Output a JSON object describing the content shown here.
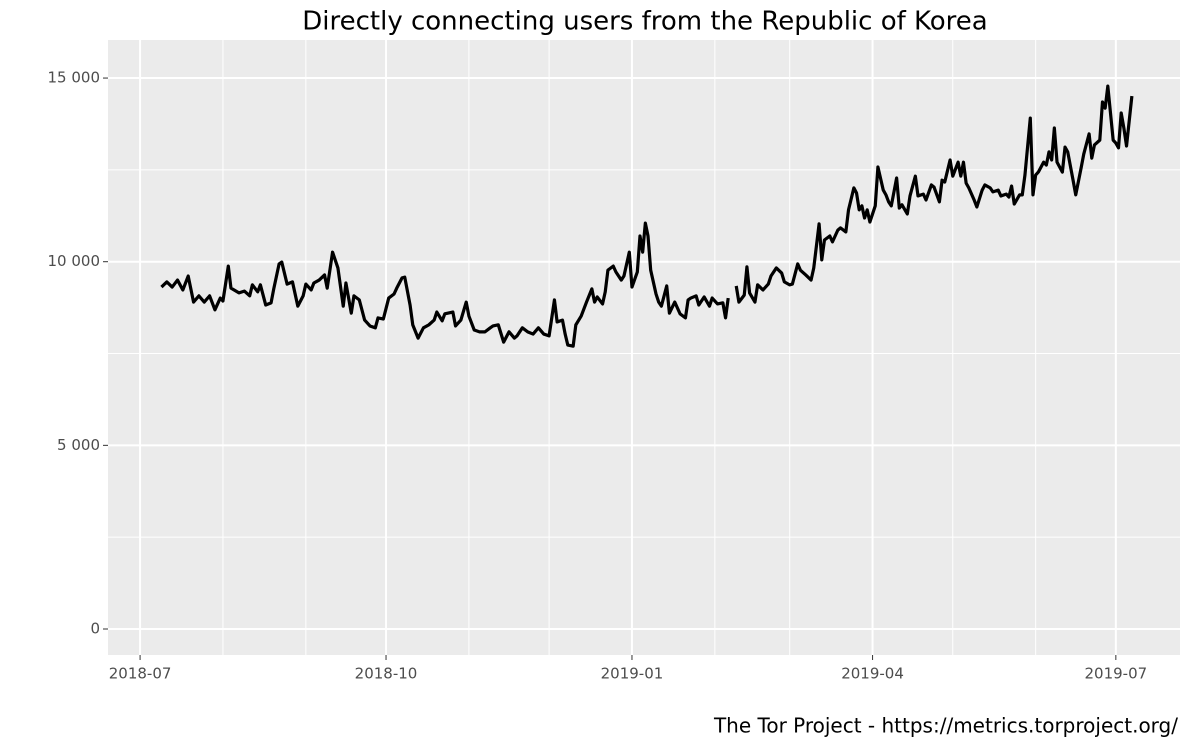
{
  "chart_data": {
    "type": "line",
    "title": "Directly connecting users from the Republic of Korea",
    "caption": "The Tor Project - https://metrics.torproject.org/",
    "x": [
      "2018-07-09",
      "2018-07-11",
      "2018-07-13",
      "2018-07-15",
      "2018-07-17",
      "2018-07-19",
      "2018-07-21",
      "2018-07-23",
      "2018-07-25",
      "2018-07-27",
      "2018-07-29",
      "2018-07-31",
      "2018-08-01",
      "2018-08-03",
      "2018-08-04",
      "2018-08-07",
      "2018-08-09",
      "2018-08-11",
      "2018-08-12",
      "2018-08-14",
      "2018-08-15",
      "2018-08-17",
      "2018-08-19",
      "2018-08-20",
      "2018-08-22",
      "2018-08-23",
      "2018-08-25",
      "2018-08-27",
      "2018-08-29",
      "2018-08-31",
      "2018-09-01",
      "2018-09-03",
      "2018-09-04",
      "2018-09-06",
      "2018-09-08",
      "2018-09-09",
      "2018-09-11",
      "2018-09-13",
      "2018-09-15",
      "2018-09-16",
      "2018-09-18",
      "2018-09-19",
      "2018-09-21",
      "2018-09-23",
      "2018-09-25",
      "2018-09-27",
      "2018-09-28",
      "2018-09-30",
      "2018-10-02",
      "2018-10-04",
      "2018-10-05",
      "2018-10-07",
      "2018-10-08",
      "2018-10-10",
      "2018-10-11",
      "2018-10-13",
      "2018-10-15",
      "2018-10-17",
      "2018-10-19",
      "2018-10-20",
      "2018-10-22",
      "2018-10-23",
      "2018-10-26",
      "2018-10-27",
      "2018-10-29",
      "2018-10-31",
      "2018-11-01",
      "2018-11-03",
      "2018-11-05",
      "2018-11-07",
      "2018-11-09",
      "2018-11-10",
      "2018-11-12",
      "2018-11-14",
      "2018-11-16",
      "2018-11-18",
      "2018-11-19",
      "2018-11-21",
      "2018-11-23",
      "2018-11-25",
      "2018-11-27",
      "2018-11-29",
      "2018-12-01",
      "2018-12-03",
      "2018-12-04",
      "2018-12-06",
      "2018-12-07",
      "2018-12-08",
      "2018-12-10",
      "2018-12-11",
      "2018-12-13",
      "2018-12-15",
      "2018-12-17",
      "2018-12-18",
      "2018-12-19",
      "2018-12-21",
      "2018-12-22",
      "2018-12-23",
      "2018-12-25",
      "2018-12-26",
      "2018-12-28",
      "2018-12-29",
      "2018-12-31",
      "2019-01-01",
      "2019-01-03",
      "2019-01-04",
      "2019-01-05",
      "2019-01-06",
      "2019-01-07",
      "2019-01-08",
      "2019-01-10",
      "2019-01-11",
      "2019-01-12",
      "2019-01-14",
      "2019-01-15",
      "2019-01-17",
      "2019-01-19",
      "2019-01-21",
      "2019-01-22",
      "2019-01-23",
      "2019-01-25",
      "2019-01-26",
      "2019-01-28",
      "2019-01-30",
      "2019-01-31",
      "2019-02-02",
      "2019-02-04",
      "2019-02-05",
      "2019-02-06",
      "2019-02-08",
      "2019-02-09",
      "2019-02-10",
      "2019-02-12",
      "2019-02-13",
      "2019-02-14",
      "2019-02-16",
      "2019-02-17",
      "2019-02-19",
      "2019-02-21",
      "2019-02-22",
      "2019-02-24",
      "2019-02-26",
      "2019-02-27",
      "2019-03-01",
      "2019-03-02",
      "2019-03-04",
      "2019-03-05",
      "2019-03-07",
      "2019-03-09",
      "2019-03-10",
      "2019-03-12",
      "2019-03-13",
      "2019-03-14",
      "2019-03-16",
      "2019-03-17",
      "2019-03-19",
      "2019-03-20",
      "2019-03-22",
      "2019-03-23",
      "2019-03-25",
      "2019-03-26",
      "2019-03-27",
      "2019-03-28",
      "2019-03-29",
      "2019-03-30",
      "2019-03-31",
      "2019-04-02",
      "2019-04-03",
      "2019-04-05",
      "2019-04-06",
      "2019-04-07",
      "2019-04-08",
      "2019-04-10",
      "2019-04-11",
      "2019-04-12",
      "2019-04-14",
      "2019-04-15",
      "2019-04-17",
      "2019-04-18",
      "2019-04-20",
      "2019-04-21",
      "2019-04-23",
      "2019-04-24",
      "2019-04-26",
      "2019-04-27",
      "2019-04-28",
      "2019-04-30",
      "2019-05-01",
      "2019-05-03",
      "2019-05-04",
      "2019-05-05",
      "2019-05-06",
      "2019-05-07",
      "2019-05-09",
      "2019-05-10",
      "2019-05-12",
      "2019-05-13",
      "2019-05-15",
      "2019-05-16",
      "2019-05-18",
      "2019-05-19",
      "2019-05-21",
      "2019-05-22",
      "2019-05-23",
      "2019-05-24",
      "2019-05-26",
      "2019-05-27",
      "2019-05-28",
      "2019-05-30",
      "2019-05-31",
      "2019-06-01",
      "2019-06-02",
      "2019-06-04",
      "2019-06-05",
      "2019-06-06",
      "2019-06-07",
      "2019-06-08",
      "2019-06-09",
      "2019-06-11",
      "2019-06-12",
      "2019-06-13",
      "2019-06-15",
      "2019-06-16",
      "2019-06-18",
      "2019-06-19",
      "2019-06-21",
      "2019-06-22",
      "2019-06-23",
      "2019-06-25",
      "2019-06-26",
      "2019-06-27",
      "2019-06-28",
      "2019-06-30",
      "2019-07-01",
      "2019-07-02",
      "2019-07-03",
      "2019-07-04",
      "2019-07-05",
      "2019-07-07"
    ],
    "series": [
      {
        "color": "#000000",
        "values": [
          9310,
          9450,
          9310,
          9500,
          9230,
          9610,
          8900,
          9070,
          8900,
          9070,
          8690,
          9010,
          8930,
          9880,
          9280,
          9150,
          9200,
          9070,
          9370,
          9180,
          9370,
          8820,
          8880,
          9260,
          9940,
          9990,
          9390,
          9450,
          8790,
          9070,
          9390,
          9230,
          9420,
          9500,
          9640,
          9280,
          10260,
          9830,
          8790,
          9420,
          8600,
          9070,
          8960,
          8410,
          8250,
          8200,
          8470,
          8440,
          9010,
          9120,
          9280,
          9560,
          9580,
          8820,
          8280,
          7920,
          8200,
          8280,
          8410,
          8630,
          8390,
          8580,
          8630,
          8250,
          8410,
          8900,
          8520,
          8140,
          8090,
          8090,
          8200,
          8250,
          8280,
          7810,
          8090,
          7920,
          7980,
          8200,
          8090,
          8030,
          8200,
          8030,
          7980,
          8960,
          8360,
          8410,
          8030,
          7730,
          7700,
          8280,
          8520,
          8900,
          9260,
          8900,
          9040,
          8850,
          9180,
          9770,
          9880,
          9720,
          9500,
          9610,
          10260,
          9310,
          9720,
          10700,
          10260,
          11050,
          10700,
          9770,
          9120,
          8900,
          8790,
          9340,
          8600,
          8900,
          8580,
          8470,
          8960,
          9010,
          9070,
          8820,
          9040,
          8790,
          9010,
          8850,
          8880,
          8470,
          9010,
          null,
          9340,
          8900,
          9090,
          9860,
          9150,
          8900,
          9370,
          9230,
          9390,
          9610,
          9830,
          9690,
          9450,
          9370,
          9390,
          9940,
          9770,
          9640,
          9500,
          9830,
          11030,
          10050,
          10590,
          10700,
          10540,
          10860,
          10920,
          10810,
          11410,
          12010,
          11870,
          11410,
          11520,
          11190,
          11410,
          11080,
          11520,
          12580,
          11950,
          11820,
          11630,
          11520,
          12280,
          11460,
          11550,
          11300,
          11790,
          12330,
          11790,
          11840,
          11680,
          12090,
          12030,
          11630,
          12220,
          12170,
          12770,
          12330,
          12710,
          12330,
          12710,
          12140,
          12010,
          11680,
          11490,
          11950,
          12090,
          12010,
          11900,
          11950,
          11790,
          11840,
          11760,
          12060,
          11570,
          11820,
          11820,
          12360,
          13910,
          11820,
          12360,
          12440,
          12710,
          12630,
          12990,
          12770,
          13640,
          12710,
          12440,
          13120,
          12990,
          12220,
          11820,
          12550,
          12930,
          13480,
          12820,
          13180,
          13310,
          14350,
          14180,
          14780,
          13310,
          13230,
          13100,
          14050,
          13640,
          13150,
          14510
        ]
      }
    ],
    "xlim": [
      "2018-06-19",
      "2019-07-25"
    ],
    "xticks": [
      {
        "value": "2018-07-01",
        "label": "2018-07"
      },
      {
        "value": "2018-10-01",
        "label": "2018-10"
      },
      {
        "value": "2019-01-01",
        "label": "2019-01"
      },
      {
        "value": "2019-04-01",
        "label": "2019-04"
      },
      {
        "value": "2019-07-01",
        "label": "2019-07"
      }
    ],
    "xminor": [
      "2018-08-01",
      "2018-09-01",
      "2018-11-01",
      "2018-12-01",
      "2019-02-01",
      "2019-03-01",
      "2019-05-01",
      "2019-06-01"
    ],
    "ylim": [
      -708,
      16036
    ],
    "yticks": [
      0,
      {
        "value": 5000,
        "label": "5 000"
      },
      {
        "value": 10000,
        "label": "10 000"
      },
      {
        "value": 15000,
        "label": "15 000"
      }
    ],
    "yminor": [
      2500,
      7500,
      12500
    ],
    "grid": true
  }
}
